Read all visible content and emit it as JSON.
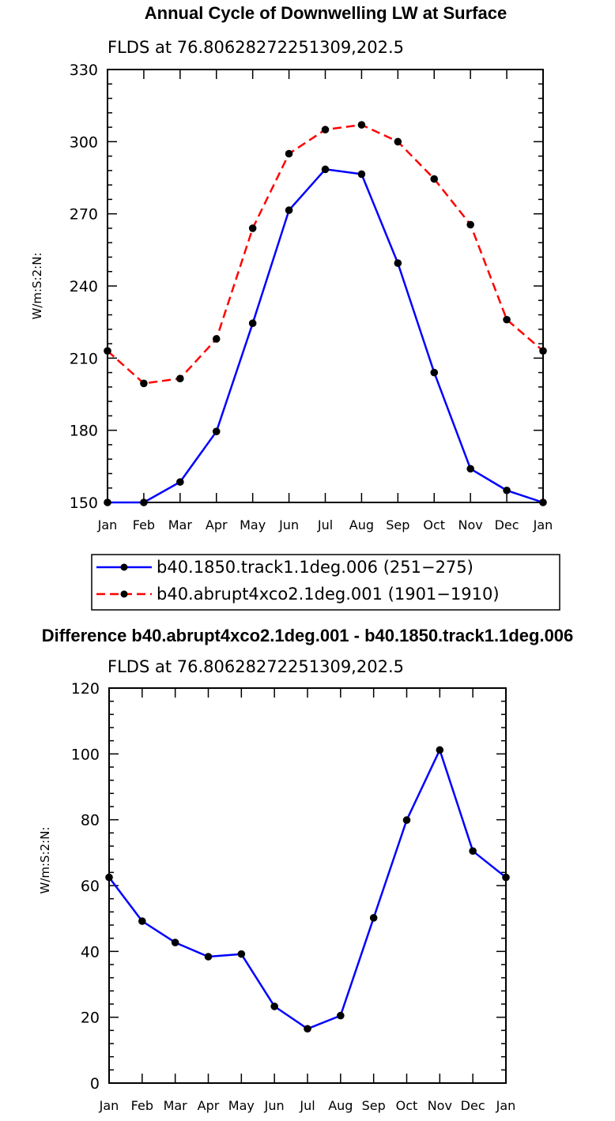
{
  "chart_data": [
    {
      "type": "line",
      "title": "Annual Cycle of Downwelling LW at Surface",
      "subtitle": "FLDS at 76.80628272251309,202.5",
      "ylabel": "W/m:S:2:N:",
      "xlabel": "",
      "categories": [
        "Jan",
        "Feb",
        "Mar",
        "Apr",
        "May",
        "Jun",
        "Jul",
        "Aug",
        "Sep",
        "Oct",
        "Nov",
        "Dec",
        "Jan"
      ],
      "ylim": [
        150,
        330
      ],
      "yticks": [
        150,
        180,
        210,
        240,
        270,
        300,
        330
      ],
      "yticklabels": [
        "150",
        "180",
        "210",
        "240",
        "270",
        "300",
        "330"
      ],
      "series": [
        {
          "name": "b40.1850.track1.1deg.006 (251-275)",
          "legend_label": "b40.1850.track1.1deg.006 (251−275)",
          "color": "#0000ff",
          "style": "solid",
          "values": [
            150.0,
            150.0,
            158.5,
            179.5,
            224.5,
            271.5,
            288.5,
            286.5,
            249.5,
            204.0,
            164.0,
            155.0,
            150.0
          ]
        },
        {
          "name": "b40.abrupt4xco2.1deg.001 (1901-1910)",
          "legend_label": "b40.abrupt4xco2.1deg.001 (1901−1910)",
          "color": "#ff0000",
          "style": "dashed",
          "values": [
            213.0,
            199.5,
            201.5,
            218.0,
            264.0,
            295.0,
            305.0,
            307.0,
            300.0,
            284.5,
            265.5,
            226.0,
            213.0
          ]
        }
      ],
      "legend_position": "below"
    },
    {
      "type": "line",
      "title": "Difference b40.abrupt4xco2.1deg.001 - b40.1850.track1.1deg.006",
      "subtitle": "FLDS at 76.80628272251309,202.5",
      "ylabel": "W/m:S:2:N:",
      "xlabel": "",
      "categories": [
        "Jan",
        "Feb",
        "Mar",
        "Apr",
        "May",
        "Jun",
        "Jul",
        "Aug",
        "Sep",
        "Oct",
        "Nov",
        "Dec",
        "Jan"
      ],
      "ylim": [
        0,
        120
      ],
      "yticks": [
        0,
        20,
        40,
        60,
        80,
        100,
        120
      ],
      "yticklabels": [
        "0",
        "20",
        "40",
        "60",
        "80",
        "100",
        "120"
      ],
      "series": [
        {
          "name": "difference",
          "color": "#0000ff",
          "style": "solid",
          "values": [
            62.5,
            49.2,
            42.7,
            38.4,
            39.2,
            23.3,
            16.5,
            20.5,
            50.2,
            79.9,
            101.2,
            70.5,
            62.5
          ]
        }
      ]
    }
  ]
}
